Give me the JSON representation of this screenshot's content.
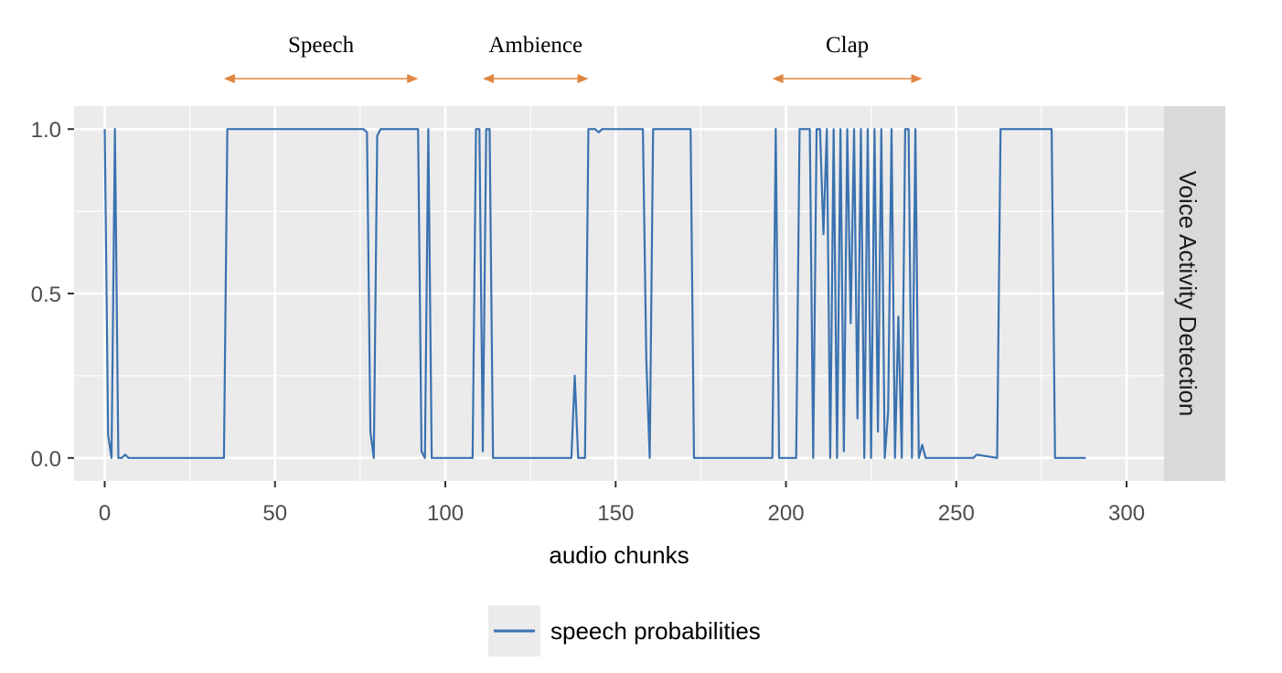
{
  "chart_data": {
    "type": "line",
    "title": "",
    "xlabel": "audio chunks",
    "ylabel": "",
    "facet_label": "Voice Activity Detection",
    "xlim": [
      -9,
      311
    ],
    "ylim": [
      -0.07,
      1.07
    ],
    "x_ticks": [
      0,
      50,
      100,
      150,
      200,
      250,
      300
    ],
    "x_tick_labels": [
      "0",
      "50",
      "100",
      "150",
      "200",
      "250",
      "300"
    ],
    "y_ticks": [
      0.0,
      0.5,
      1.0
    ],
    "y_tick_labels": [
      "0.0",
      "0.5",
      "1.0"
    ],
    "grid": true,
    "legend_position": "bottom",
    "colors": {
      "series": "#3a72b0",
      "annotation": "#e0853f",
      "panel_background": "#ebebeb",
      "strip_background": "#d9d9d9",
      "grid": "#ffffff"
    },
    "annotations": [
      {
        "label": "Speech",
        "x_start": 35,
        "x_end": 92
      },
      {
        "label": "Ambience",
        "x_start": 111,
        "x_end": 142
      },
      {
        "label": "Clap",
        "x_start": 196,
        "x_end": 240
      }
    ],
    "series": [
      {
        "name": "speech probabilities",
        "x": [
          0,
          1,
          2,
          3,
          4,
          5,
          6,
          7,
          35,
          36,
          37,
          76,
          77,
          78,
          79,
          80,
          81,
          92,
          93,
          94,
          95,
          96,
          108,
          109,
          110,
          111,
          112,
          113,
          114,
          137,
          138,
          139,
          141,
          142,
          144,
          145,
          146,
          158,
          159,
          160,
          161,
          172,
          173,
          174,
          196,
          197,
          198,
          203,
          204,
          207,
          208,
          209,
          210,
          211,
          212,
          213,
          214,
          215,
          216,
          217,
          218,
          219,
          220,
          221,
          222,
          223,
          224,
          225,
          226,
          227,
          228,
          229,
          230,
          231,
          232,
          233,
          234,
          235,
          236,
          237,
          238,
          239,
          240,
          241,
          254,
          255,
          256,
          262,
          263,
          278,
          279,
          288
        ],
        "y": [
          1.0,
          0.07,
          0.0,
          1.0,
          0.0,
          0.0,
          0.01,
          0.0,
          0.0,
          1.0,
          1.0,
          1.0,
          0.99,
          0.08,
          0.0,
          0.98,
          1.0,
          1.0,
          0.02,
          0.0,
          1.0,
          0.0,
          0.0,
          1.0,
          1.0,
          0.02,
          1.0,
          1.0,
          0.0,
          0.0,
          0.25,
          0.0,
          0.0,
          1.0,
          1.0,
          0.99,
          1.0,
          1.0,
          0.3,
          0.0,
          1.0,
          1.0,
          0.0,
          0.0,
          0.0,
          1.0,
          0.0,
          0.0,
          1.0,
          1.0,
          0.0,
          1.0,
          1.0,
          0.68,
          1.0,
          0.0,
          1.0,
          0.0,
          1.0,
          0.02,
          1.0,
          0.41,
          1.0,
          0.12,
          1.0,
          0.0,
          1.0,
          0.0,
          1.0,
          0.08,
          1.0,
          0.0,
          0.14,
          1.0,
          0.0,
          0.43,
          0.0,
          1.0,
          1.0,
          0.0,
          1.0,
          0.0,
          0.04,
          0.0,
          0.0,
          0.0,
          0.01,
          0.0,
          1.0,
          1.0,
          0.0,
          0.0
        ]
      }
    ]
  }
}
